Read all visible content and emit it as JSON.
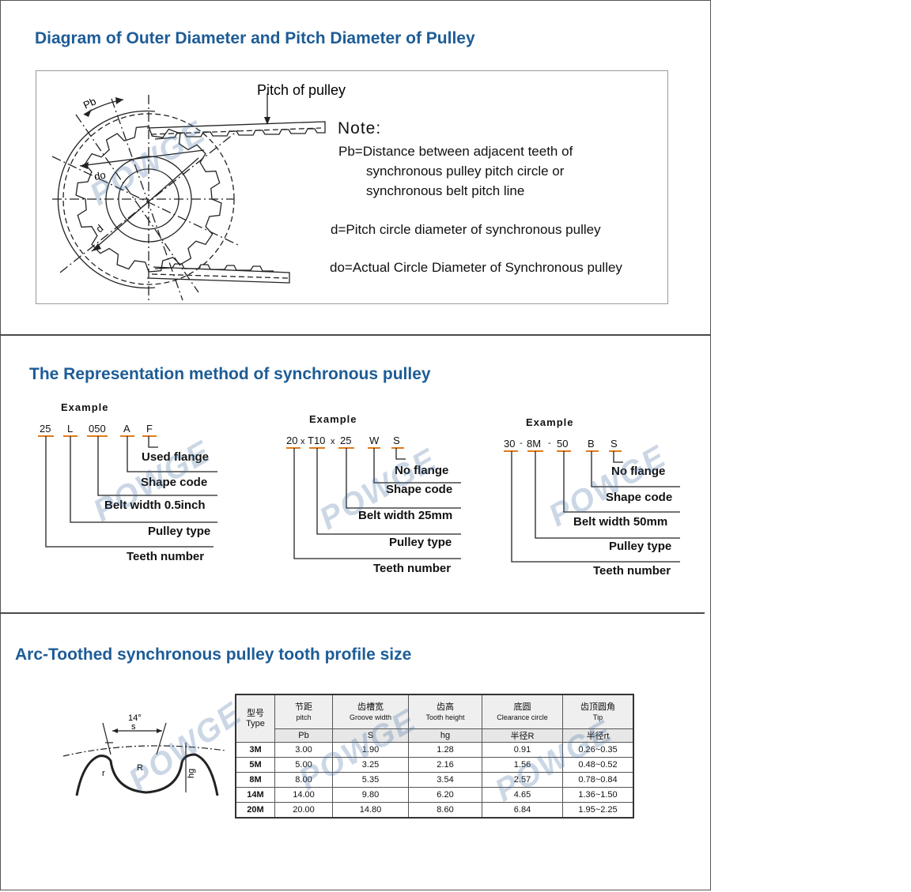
{
  "sections": {
    "diagram_title": "Diagram of Outer Diameter and Pitch Diameter of Pulley",
    "representation_title": "The Representation method of synchronous pulley",
    "profile_title": "Arc-Toothed synchronous pulley tooth profile size"
  },
  "diagram": {
    "pitch_label": "Pitch of pulley",
    "pb_label": "Pb",
    "do_label": "do",
    "d_label": "d",
    "note_title": "Note:",
    "note_pb_1": "Pb=Distance between adjacent teeth of",
    "note_pb_2": "synchronous pulley pitch circle or",
    "note_pb_3": "synchronous belt pitch line",
    "note_d": "d=Pitch circle diameter of synchronous pulley",
    "note_do": "do=Actual Circle Diameter of Synchronous pulley"
  },
  "examples": [
    {
      "heading": "Example",
      "codes": [
        "25",
        "L",
        "050",
        "A",
        "F"
      ],
      "labels": [
        "Used flange",
        "Shape code",
        "Belt width 0.5inch",
        "Pulley type",
        "Teeth number"
      ]
    },
    {
      "heading": "Example",
      "codes": [
        "20",
        "x",
        "T10",
        "x",
        "25",
        "W",
        "S"
      ],
      "labels": [
        "No flange",
        "Shape code",
        "Belt width 25mm",
        "Pulley type",
        "Teeth number"
      ]
    },
    {
      "heading": "Example",
      "codes": [
        "30",
        "-",
        "8M",
        "-",
        "50",
        "B",
        "S"
      ],
      "labels": [
        "No flange",
        "Shape code",
        "Belt width 50mm",
        "Pulley type",
        "Teeth number"
      ]
    }
  ],
  "profile": {
    "angle": "14°",
    "s": "s",
    "r": "r",
    "R": "R",
    "hg": "hg"
  },
  "table": {
    "headers": [
      {
        "zh": "型号",
        "en": "Type"
      },
      {
        "zh": "节距",
        "en": "pitch"
      },
      {
        "zh": "齿槽宽",
        "en": "Groove width"
      },
      {
        "zh": "齿高",
        "en": "Tooth height"
      },
      {
        "zh": "底圆",
        "en": "Clearance circle"
      },
      {
        "zh": "齿顶圆角",
        "en": "Tip"
      }
    ],
    "symbols": [
      "Pb",
      "S",
      "hg",
      "半径R",
      "半径rt"
    ],
    "rows": [
      [
        "3M",
        "3.00",
        "1.90",
        "1.28",
        "0.91",
        "0.26~0.35"
      ],
      [
        "5M",
        "5.00",
        "3.25",
        "2.16",
        "1.56",
        "0.48~0.52"
      ],
      [
        "8M",
        "8.00",
        "5.35",
        "3.54",
        "2.57",
        "0.78~0.84"
      ],
      [
        "14M",
        "14.00",
        "9.80",
        "6.20",
        "4.65",
        "1.36~1.50"
      ],
      [
        "20M",
        "20.00",
        "14.80",
        "8.60",
        "6.84",
        "1.95~2.25"
      ]
    ]
  },
  "watermark": "POWGE",
  "registered": "®",
  "colors": {
    "title": "#1d5c96",
    "code_underline": "#e07b1a",
    "separator": "#4a4a4a",
    "watermark": "#466ea0"
  }
}
